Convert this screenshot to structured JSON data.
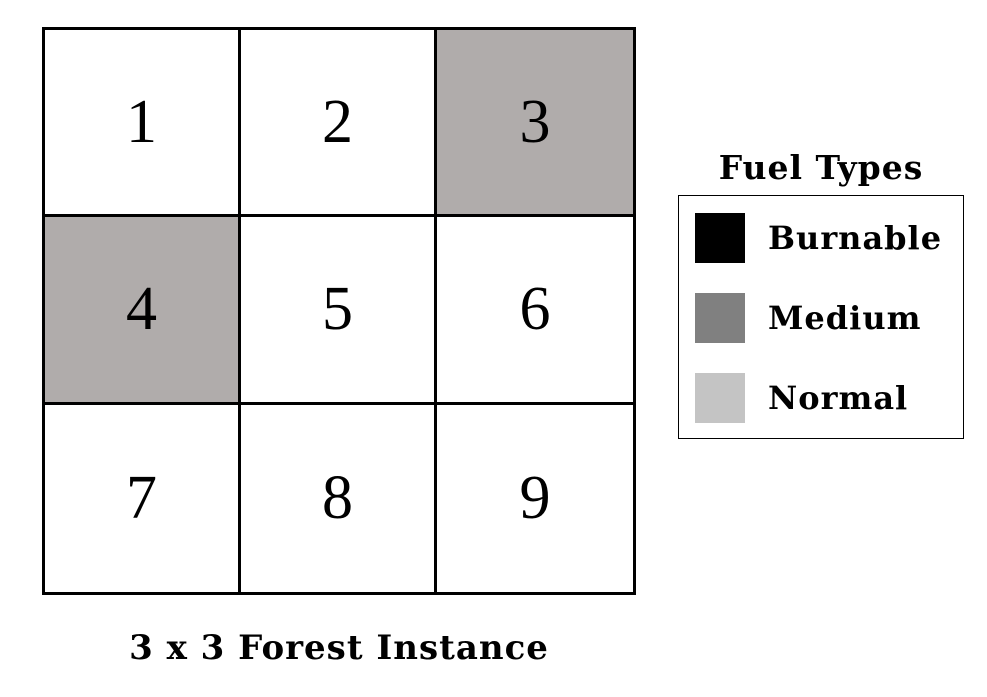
{
  "grid": {
    "rows": 3,
    "cols": 3,
    "cells": [
      {
        "label": "1",
        "fuel": "Normal-unshaded"
      },
      {
        "label": "2",
        "fuel": "Normal-unshaded"
      },
      {
        "label": "3",
        "fuel": "Shaded"
      },
      {
        "label": "4",
        "fuel": "Shaded"
      },
      {
        "label": "5",
        "fuel": "Normal-unshaded"
      },
      {
        "label": "6",
        "fuel": "Normal-unshaded"
      },
      {
        "label": "7",
        "fuel": "Normal-unshaded"
      },
      {
        "label": "8",
        "fuel": "Normal-unshaded"
      },
      {
        "label": "9",
        "fuel": "Normal-unshaded"
      }
    ],
    "colors": {
      "shaded": "#b0acab",
      "unshaded": "#ffffff",
      "border": "#000000"
    }
  },
  "caption": "3 x 3 Forest Instance",
  "legend": {
    "title": "Fuel Types",
    "items": [
      {
        "label": "Burnable",
        "color": "#000000"
      },
      {
        "label": "Medium",
        "color": "#808080"
      },
      {
        "label": "Normal",
        "color": "#c4c4c4"
      }
    ]
  }
}
